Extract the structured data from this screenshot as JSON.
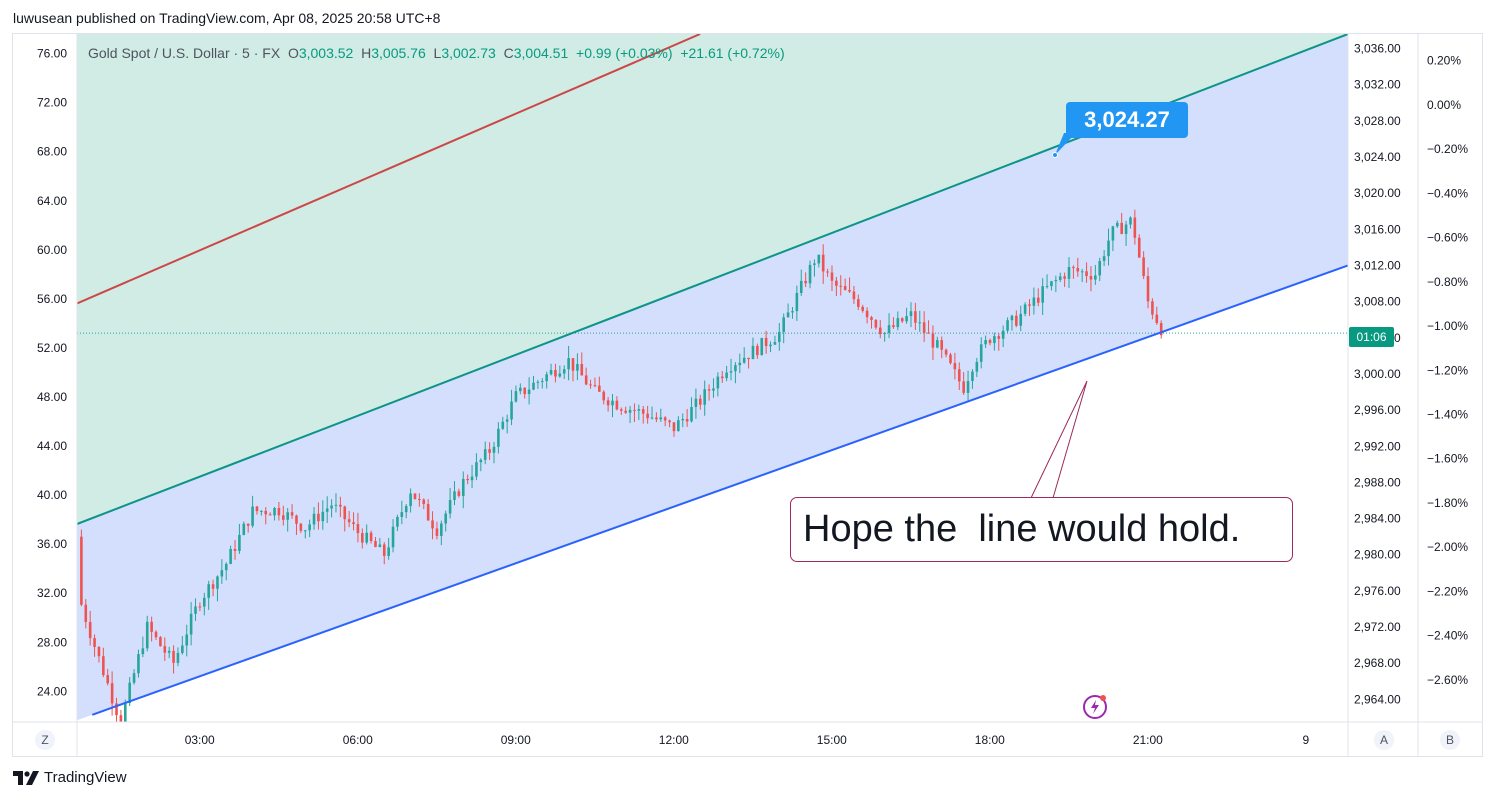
{
  "header": {
    "published_line": "luwusean published on TradingView.com, Apr 08, 2025 20:58 UTC+8"
  },
  "legend": {
    "symbol": "Gold Spot / U.S. Dollar · 5 · FX",
    "open_label": "O",
    "open_value": "3,003.52",
    "high_label": "H",
    "high_value": "3,005.76",
    "low_label": "L",
    "low_value": "3,002.73",
    "close_label": "C",
    "close_value": "3,004.51",
    "change": "+0.99 (+0.03%)",
    "change2": "+21.61 (+0.72%)"
  },
  "annotations": {
    "price_callout": "3,024.27",
    "note": "Hope the  line would hold.",
    "countdown": "01:06"
  },
  "axis_buttons": {
    "left": "Z",
    "right_a": "A",
    "right_b": "B"
  },
  "brand": {
    "name": "TradingView"
  },
  "colors": {
    "up": "#26a69a",
    "down": "#ef5350",
    "accent": "#2196f3",
    "channel_fill": "#d3dffc",
    "upper_fill": "#d1ece4",
    "teal_line": "#0d9488",
    "red_line": "#cc4747",
    "blue_line": "#2962ff",
    "note_border": "#9c2a5c"
  },
  "chart_data": {
    "type": "candlestick",
    "symbol": "XAUUSD",
    "interval": "5",
    "ylim_price": [
      2961.5,
      3037.6
    ],
    "ylim_left": [
      21.5,
      77.6
    ],
    "left_axis_ticks": [
      "76.00",
      "72.00",
      "68.00",
      "64.00",
      "60.00",
      "56.00",
      "52.00",
      "48.00",
      "44.00",
      "40.00",
      "36.00",
      "32.00",
      "28.00",
      "24.00"
    ],
    "right_axis_ticks": [
      "3,036.00",
      "3,032.00",
      "3,028.00",
      "3,024.00",
      "3,020.00",
      "3,016.00",
      "3,012.00",
      "3,008.00",
      "3,004.00",
      "3,000.00",
      "2,996.00",
      "2,992.00",
      "2,988.00",
      "2,984.00",
      "2,980.00",
      "2,976.00",
      "2,972.00",
      "2,968.00",
      "2,964.00"
    ],
    "percent_axis_ticks": [
      "0.20%",
      "0.00%",
      "−0.20%",
      "−0.40%",
      "−0.60%",
      "−0.80%",
      "−1.00%",
      "−1.20%",
      "−1.40%",
      "−1.60%",
      "−1.80%",
      "−2.00%",
      "−2.20%",
      "−2.40%",
      "−2.60%"
    ],
    "percent_range": [
      -2.79,
      0.32
    ],
    "x_ticks": [
      "03:00",
      "06:00",
      "09:00",
      "12:00",
      "15:00",
      "18:00",
      "21:00",
      "9"
    ],
    "hour_range": [
      0.67,
      24.8
    ],
    "last_price": 3004.51,
    "channel": {
      "lower": [
        [
          0.96,
          2962.3
        ],
        [
          24.8,
          3012.0
        ]
      ],
      "middle": [
        [
          0.67,
          2983.4
        ],
        [
          24.8,
          3037.6
        ]
      ],
      "upper_red": [
        [
          0.67,
          3007.8
        ],
        [
          12.5,
          3037.6
        ]
      ]
    },
    "anchor_hours": [
      0.67,
      1.0,
      1.5,
      2.0,
      2.5,
      3.0,
      3.5,
      4.0,
      4.5,
      5.0,
      5.5,
      6.0,
      6.5,
      7.0,
      7.5,
      8.0,
      8.5,
      9.0,
      9.5,
      10.0,
      10.5,
      11.0,
      11.5,
      12.0,
      12.5,
      13.0,
      13.5,
      14.0,
      14.5,
      14.7,
      15.0,
      15.5,
      16.0,
      16.5,
      17.0,
      17.5,
      17.7,
      18.0,
      18.5,
      19.0,
      19.5,
      20.0,
      20.3,
      20.7,
      21.0,
      21.3
    ],
    "anchor_closes": [
      2976.0,
      2970.0,
      2961.5,
      2972.0,
      2968.0,
      2975.0,
      2979.0,
      2984.8,
      2985.0,
      2983.0,
      2985.6,
      2982.5,
      2980.0,
      2987.2,
      2982.8,
      2988.0,
      2991.5,
      2997.5,
      2999.5,
      3001.5,
      2998.0,
      2996.5,
      2995.5,
      2994.0,
      2997.0,
      3000.8,
      3002.5,
      3004.5,
      3010.5,
      3013.0,
      3010.0,
      3008.0,
      3004.5,
      3006.5,
      3003.0,
      2998.5,
      3001.5,
      3004.0,
      3006.0,
      3009.0,
      3011.5,
      3011.0,
      3015.5,
      3017.0,
      3008.0,
      3004.5
    ]
  }
}
